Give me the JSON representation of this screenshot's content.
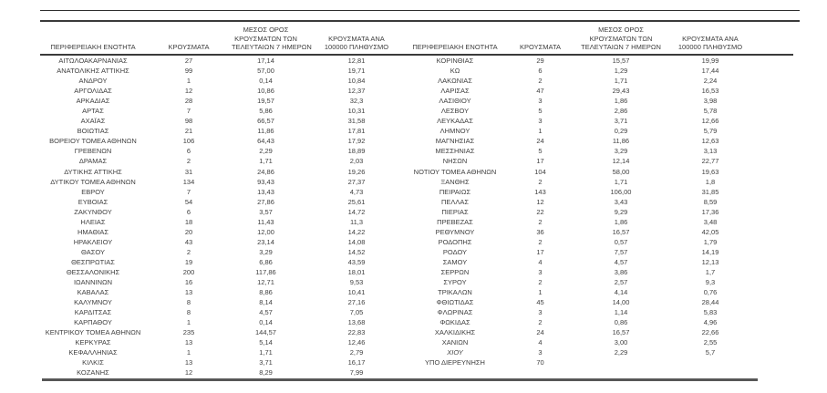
{
  "table": {
    "headers": {
      "region": "ΠΕΡΙΦΕΡΕΙΑΚΗ ΕΝΟΤΗΤΑ",
      "cases": "ΚΡΟΥΣΜΑΤΑ",
      "avg7": [
        "ΜΕΣΟΣ ΟΡΟΣ",
        "ΚΡΟΥΣΜΑΤΩΝ ΤΩΝ",
        "ΤΕΛΕΥΤΑΙΩΝ 7 ΗΜΕΡΩΝ"
      ],
      "per100k": [
        "ΚΡΟΥΣΜΑΤΑ ΑΝΑ",
        "100000 ΠΛΗΘΥΣΜΟ"
      ]
    },
    "left_rows": [
      {
        "cells": [
          "ΑΙΤΩΛΟΑΚΑΡΝΑΝΙΑΣ",
          "27",
          "17,14",
          "12,81"
        ]
      },
      {
        "cells": [
          "ΑΝΑΤΟΛΙΚΗΣ ΑΤΤΙΚΗΣ",
          "99",
          "57,00",
          "19,71"
        ]
      },
      {
        "cells": [
          "ΑΝΔΡΟΥ",
          "1",
          "0,14",
          "10,84"
        ]
      },
      {
        "cells": [
          "ΑΡΓΟΛΙΔΑΣ",
          "12",
          "10,86",
          "12,37"
        ]
      },
      {
        "cells": [
          "ΑΡΚΑΔΙΑΣ",
          "28",
          "19,57",
          "32,3"
        ]
      },
      {
        "cells": [
          "ΑΡΤΑΣ",
          "7",
          "5,86",
          "10,31"
        ]
      },
      {
        "cells": [
          "ΑΧΑΪΑΣ",
          "98",
          "66,57",
          "31,58"
        ]
      },
      {
        "cells": [
          "ΒΟΙΩΤΙΑΣ",
          "21",
          "11,86",
          "17,81"
        ]
      },
      {
        "cells": [
          "ΒΟΡΕΙΟΥ ΤΟΜΕΑ ΑΘΗΝΩΝ",
          "106",
          "64,43",
          "17,92"
        ]
      },
      {
        "cells": [
          "ΓΡΕΒΕΝΩΝ",
          "6",
          "2,29",
          "18,89"
        ]
      },
      {
        "cells": [
          "ΔΡΑΜΑΣ",
          "2",
          "1,71",
          "2,03"
        ]
      },
      {
        "cells": [
          "ΔΥΤΙΚΗΣ ΑΤΤΙΚΗΣ",
          "31",
          "24,86",
          "19,26"
        ]
      },
      {
        "cells": [
          "ΔΥΤΙΚΟΥ ΤΟΜΕΑ ΑΘΗΝΩΝ",
          "134",
          "93,43",
          "27,37"
        ]
      },
      {
        "cells": [
          "ΕΒΡΟΥ",
          "7",
          "13,43",
          "4,73"
        ]
      },
      {
        "cells": [
          "ΕΥΒΟΙΑΣ",
          "54",
          "27,86",
          "25,61"
        ]
      },
      {
        "cells": [
          "ΖΑΚΥΝΘΟΥ",
          "6",
          "3,57",
          "14,72"
        ]
      },
      {
        "cells": [
          "ΗΛΕΙΑΣ",
          "18",
          "11,43",
          "11,3"
        ]
      },
      {
        "cells": [
          "ΗΜΑΘΙΑΣ",
          "20",
          "12,00",
          "14,22"
        ]
      },
      {
        "cells": [
          "ΗΡΑΚΛΕΙΟΥ",
          "43",
          "23,14",
          "14,08"
        ]
      },
      {
        "cells": [
          "ΘΑΣΟΥ",
          "2",
          "3,29",
          "14,52"
        ]
      },
      {
        "cells": [
          "ΘΕΣΠΡΩΤΙΑΣ",
          "19",
          "6,86",
          "43,59"
        ]
      },
      {
        "cells": [
          "ΘΕΣΣΑΛΟΝΙΚΗΣ",
          "200",
          "117,86",
          "18,01"
        ]
      },
      {
        "cells": [
          "ΙΩΑΝΝΙΝΩΝ",
          "16",
          "12,71",
          "9,53"
        ]
      },
      {
        "cells": [
          "ΚΑΒΑΛΑΣ",
          "13",
          "8,86",
          "10,41"
        ]
      },
      {
        "cells": [
          "ΚΑΛΥΜΝΟΥ",
          "8",
          "8,14",
          "27,16"
        ]
      },
      {
        "cells": [
          "ΚΑΡΔΙΤΣΑΣ",
          "8",
          "4,57",
          "7,05"
        ]
      },
      {
        "cells": [
          "ΚΑΡΠΑΘΟΥ",
          "1",
          "0,14",
          "13,68"
        ]
      },
      {
        "cells": [
          "ΚΕΝΤΡΙΚΟΥ ΤΟΜΕΑ ΑΘΗΝΩΝ",
          "235",
          "144,57",
          "22,83"
        ]
      },
      {
        "cells": [
          "ΚΕΡΚΥΡΑΣ",
          "13",
          "5,14",
          "12,46"
        ]
      },
      {
        "cells": [
          "ΚΕΦΑΛΛΗΝΙΑΣ",
          "1",
          "1,71",
          "2,79"
        ]
      },
      {
        "cells": [
          "ΚΙΛΚΙΣ",
          "13",
          "3,71",
          "16,17"
        ]
      },
      {
        "cells": [
          "ΚΟΖΑΝΗΣ",
          "12",
          "8,29",
          "7,99"
        ]
      }
    ],
    "right_rows": [
      {
        "cells": [
          "ΚΟΡΙΝΘΙΑΣ",
          "29",
          "15,57",
          "19,99"
        ]
      },
      {
        "cells": [
          "ΚΩ",
          "6",
          "1,29",
          "17,44"
        ]
      },
      {
        "cells": [
          "ΛΑΚΩΝΙΑΣ",
          "2",
          "1,71",
          "2,24"
        ]
      },
      {
        "cells": [
          "ΛΑΡΙΣΑΣ",
          "47",
          "29,43",
          "16,53"
        ]
      },
      {
        "cells": [
          "ΛΑΣΙΘΙΟΥ",
          "3",
          "1,86",
          "3,98"
        ]
      },
      {
        "cells": [
          "ΛΕΣΒΟΥ",
          "5",
          "2,86",
          "5,78"
        ]
      },
      {
        "cells": [
          "ΛΕΥΚΑΔΑΣ",
          "3",
          "3,71",
          "12,66"
        ]
      },
      {
        "cells": [
          "ΛΗΜΝΟΥ",
          "1",
          "0,29",
          "5,79"
        ]
      },
      {
        "cells": [
          "ΜΑΓΝΗΣΙΑΣ",
          "24",
          "11,86",
          "12,63"
        ]
      },
      {
        "cells": [
          "ΜΕΣΣΗΝΙΑΣ",
          "5",
          "3,29",
          "3,13"
        ]
      },
      {
        "cells": [
          "ΝΗΣΩΝ",
          "17",
          "12,14",
          "22,77"
        ]
      },
      {
        "cells": [
          "ΝΟΤΙΟΥ ΤΟΜΕΑ ΑΘΗΝΩΝ",
          "104",
          "58,00",
          "19,63"
        ]
      },
      {
        "cells": [
          "ΞΑΝΘΗΣ",
          "2",
          "1,71",
          "1,8"
        ]
      },
      {
        "cells": [
          "ΠΕΙΡΑΙΩΣ",
          "143",
          "106,00",
          "31,85"
        ]
      },
      {
        "cells": [
          "ΠΕΛΛΑΣ",
          "12",
          "3,43",
          "8,59"
        ]
      },
      {
        "cells": [
          "ΠΙΕΡΙΑΣ",
          "22",
          "9,29",
          "17,36"
        ]
      },
      {
        "cells": [
          "ΠΡΕΒΕΖΑΣ",
          "2",
          "1,86",
          "3,48"
        ]
      },
      {
        "cells": [
          "ΡΕΘΥΜΝΟΥ",
          "36",
          "16,57",
          "42,05"
        ]
      },
      {
        "cells": [
          "ΡΟΔΟΠΗΣ",
          "2",
          "0,57",
          "1,79"
        ]
      },
      {
        "cells": [
          "ΡΟΔΟΥ",
          "17",
          "7,57",
          "14,19"
        ]
      },
      {
        "cells": [
          "ΣΑΜΟΥ",
          "4",
          "4,57",
          "12,13"
        ]
      },
      {
        "cells": [
          "ΣΕΡΡΩΝ",
          "3",
          "3,86",
          "1,7"
        ]
      },
      {
        "cells": [
          "ΣΥΡΟΥ",
          "2",
          "2,57",
          "9,3"
        ]
      },
      {
        "cells": [
          "ΤΡΙΚΑΛΩΝ",
          "1",
          "4,14",
          "0,76"
        ]
      },
      {
        "cells": [
          "ΦΘΙΩΤΙΔΑΣ",
          "45",
          "14,00",
          "28,44"
        ]
      },
      {
        "cells": [
          "ΦΛΩΡΙΝΑΣ",
          "3",
          "1,14",
          "5,83"
        ]
      },
      {
        "cells": [
          "ΦΩΚΙΔΑΣ",
          "2",
          "0,86",
          "4,96"
        ]
      },
      {
        "cells": [
          "ΧΑΛΚΙΔΙΚΗΣ",
          "24",
          "16,57",
          "22,66"
        ]
      },
      {
        "cells": [
          "ΧΑΝΙΩΝ",
          "4",
          "3,00",
          "2,55"
        ]
      },
      {
        "cells": [
          "ΧΙΟΥ",
          "3",
          "2,29",
          "5,7"
        ],
        "name_italic": true
      },
      {
        "cells": [
          "ΥΠΟ ΔΙΕΡΕΥΝΗΣΗ",
          "70",
          "",
          ""
        ]
      }
    ]
  }
}
